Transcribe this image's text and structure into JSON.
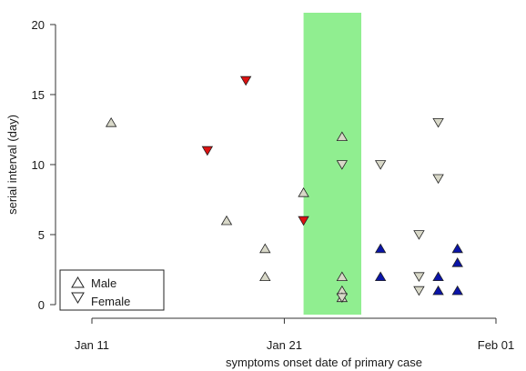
{
  "chart_data": {
    "type": "scatter",
    "title": "",
    "xlabel": "symptoms onset date of primary case",
    "ylabel": "serial interval (day)",
    "x_ticks": [
      "Jan 11",
      "Jan 21",
      "Feb 01"
    ],
    "y_ticks": [
      "0",
      "5",
      "10",
      "15",
      "20"
    ],
    "xlim": [
      "2020-01-11",
      "2020-02-01"
    ],
    "ylim": [
      0,
      20
    ],
    "grid": false,
    "legend": {
      "placement": "bottom-left",
      "entries": [
        {
          "label": "Male",
          "marker": "triangle-up"
        },
        {
          "label": "Female",
          "marker": "triangle-down"
        }
      ]
    },
    "shaded_region": {
      "x_start": "2020-01-22",
      "x_end": "2020-01-25",
      "color": "#90ee90"
    },
    "series": [
      {
        "marker": "triangle-up",
        "color": "#d8d8c8",
        "points": [
          {
            "x": "2020-01-12",
            "y": 13
          },
          {
            "x": "2020-01-18",
            "y": 6
          },
          {
            "x": "2020-01-20",
            "y": 4
          },
          {
            "x": "2020-01-20",
            "y": 2
          },
          {
            "x": "2020-01-22",
            "y": 8
          },
          {
            "x": "2020-01-24",
            "y": 12
          },
          {
            "x": "2020-01-24",
            "y": 2
          },
          {
            "x": "2020-01-24",
            "y": 1
          },
          {
            "x": "2020-01-24",
            "y": 0.5
          }
        ]
      },
      {
        "marker": "triangle-down",
        "color": "#d8d8c8",
        "points": [
          {
            "x": "2020-01-24",
            "y": 10
          },
          {
            "x": "2020-01-24",
            "y": 0.5
          },
          {
            "x": "2020-01-26",
            "y": 10
          },
          {
            "x": "2020-01-28",
            "y": 5
          },
          {
            "x": "2020-01-28",
            "y": 2
          },
          {
            "x": "2020-01-28",
            "y": 1
          },
          {
            "x": "2020-01-29",
            "y": 13
          },
          {
            "x": "2020-01-29",
            "y": 9
          }
        ]
      },
      {
        "marker": "triangle-down",
        "color": "#dd1111",
        "points": [
          {
            "x": "2020-01-17",
            "y": 11
          },
          {
            "x": "2020-01-19",
            "y": 16
          },
          {
            "x": "2020-01-22",
            "y": 6
          }
        ]
      },
      {
        "marker": "triangle-up",
        "color": "#0a14a8",
        "points": [
          {
            "x": "2020-01-26",
            "y": 4
          },
          {
            "x": "2020-01-26",
            "y": 2
          },
          {
            "x": "2020-01-29",
            "y": 2
          },
          {
            "x": "2020-01-29",
            "y": 1
          },
          {
            "x": "2020-01-30",
            "y": 4
          },
          {
            "x": "2020-01-30",
            "y": 3
          },
          {
            "x": "2020-01-30",
            "y": 1
          }
        ]
      }
    ]
  }
}
